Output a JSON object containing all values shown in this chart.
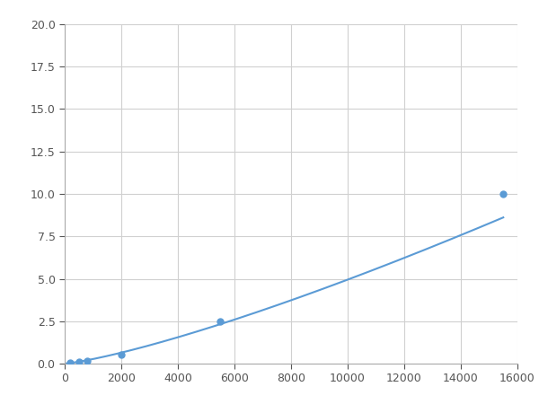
{
  "x": [
    200,
    500,
    800,
    2000,
    5500,
    15500
  ],
  "y": [
    0.05,
    0.1,
    0.15,
    0.55,
    2.5,
    10.0
  ],
  "line_color": "#5b9bd5",
  "marker_color": "#5b9bd5",
  "marker_size": 5,
  "xlim": [
    0,
    16000
  ],
  "ylim": [
    0,
    20
  ],
  "xticks": [
    0,
    2000,
    4000,
    6000,
    8000,
    10000,
    12000,
    14000,
    16000
  ],
  "yticks": [
    0.0,
    2.5,
    5.0,
    7.5,
    10.0,
    12.5,
    15.0,
    17.5,
    20.0
  ],
  "grid": true,
  "background_color": "#ffffff",
  "figsize": [
    6.0,
    4.5
  ],
  "dpi": 100
}
